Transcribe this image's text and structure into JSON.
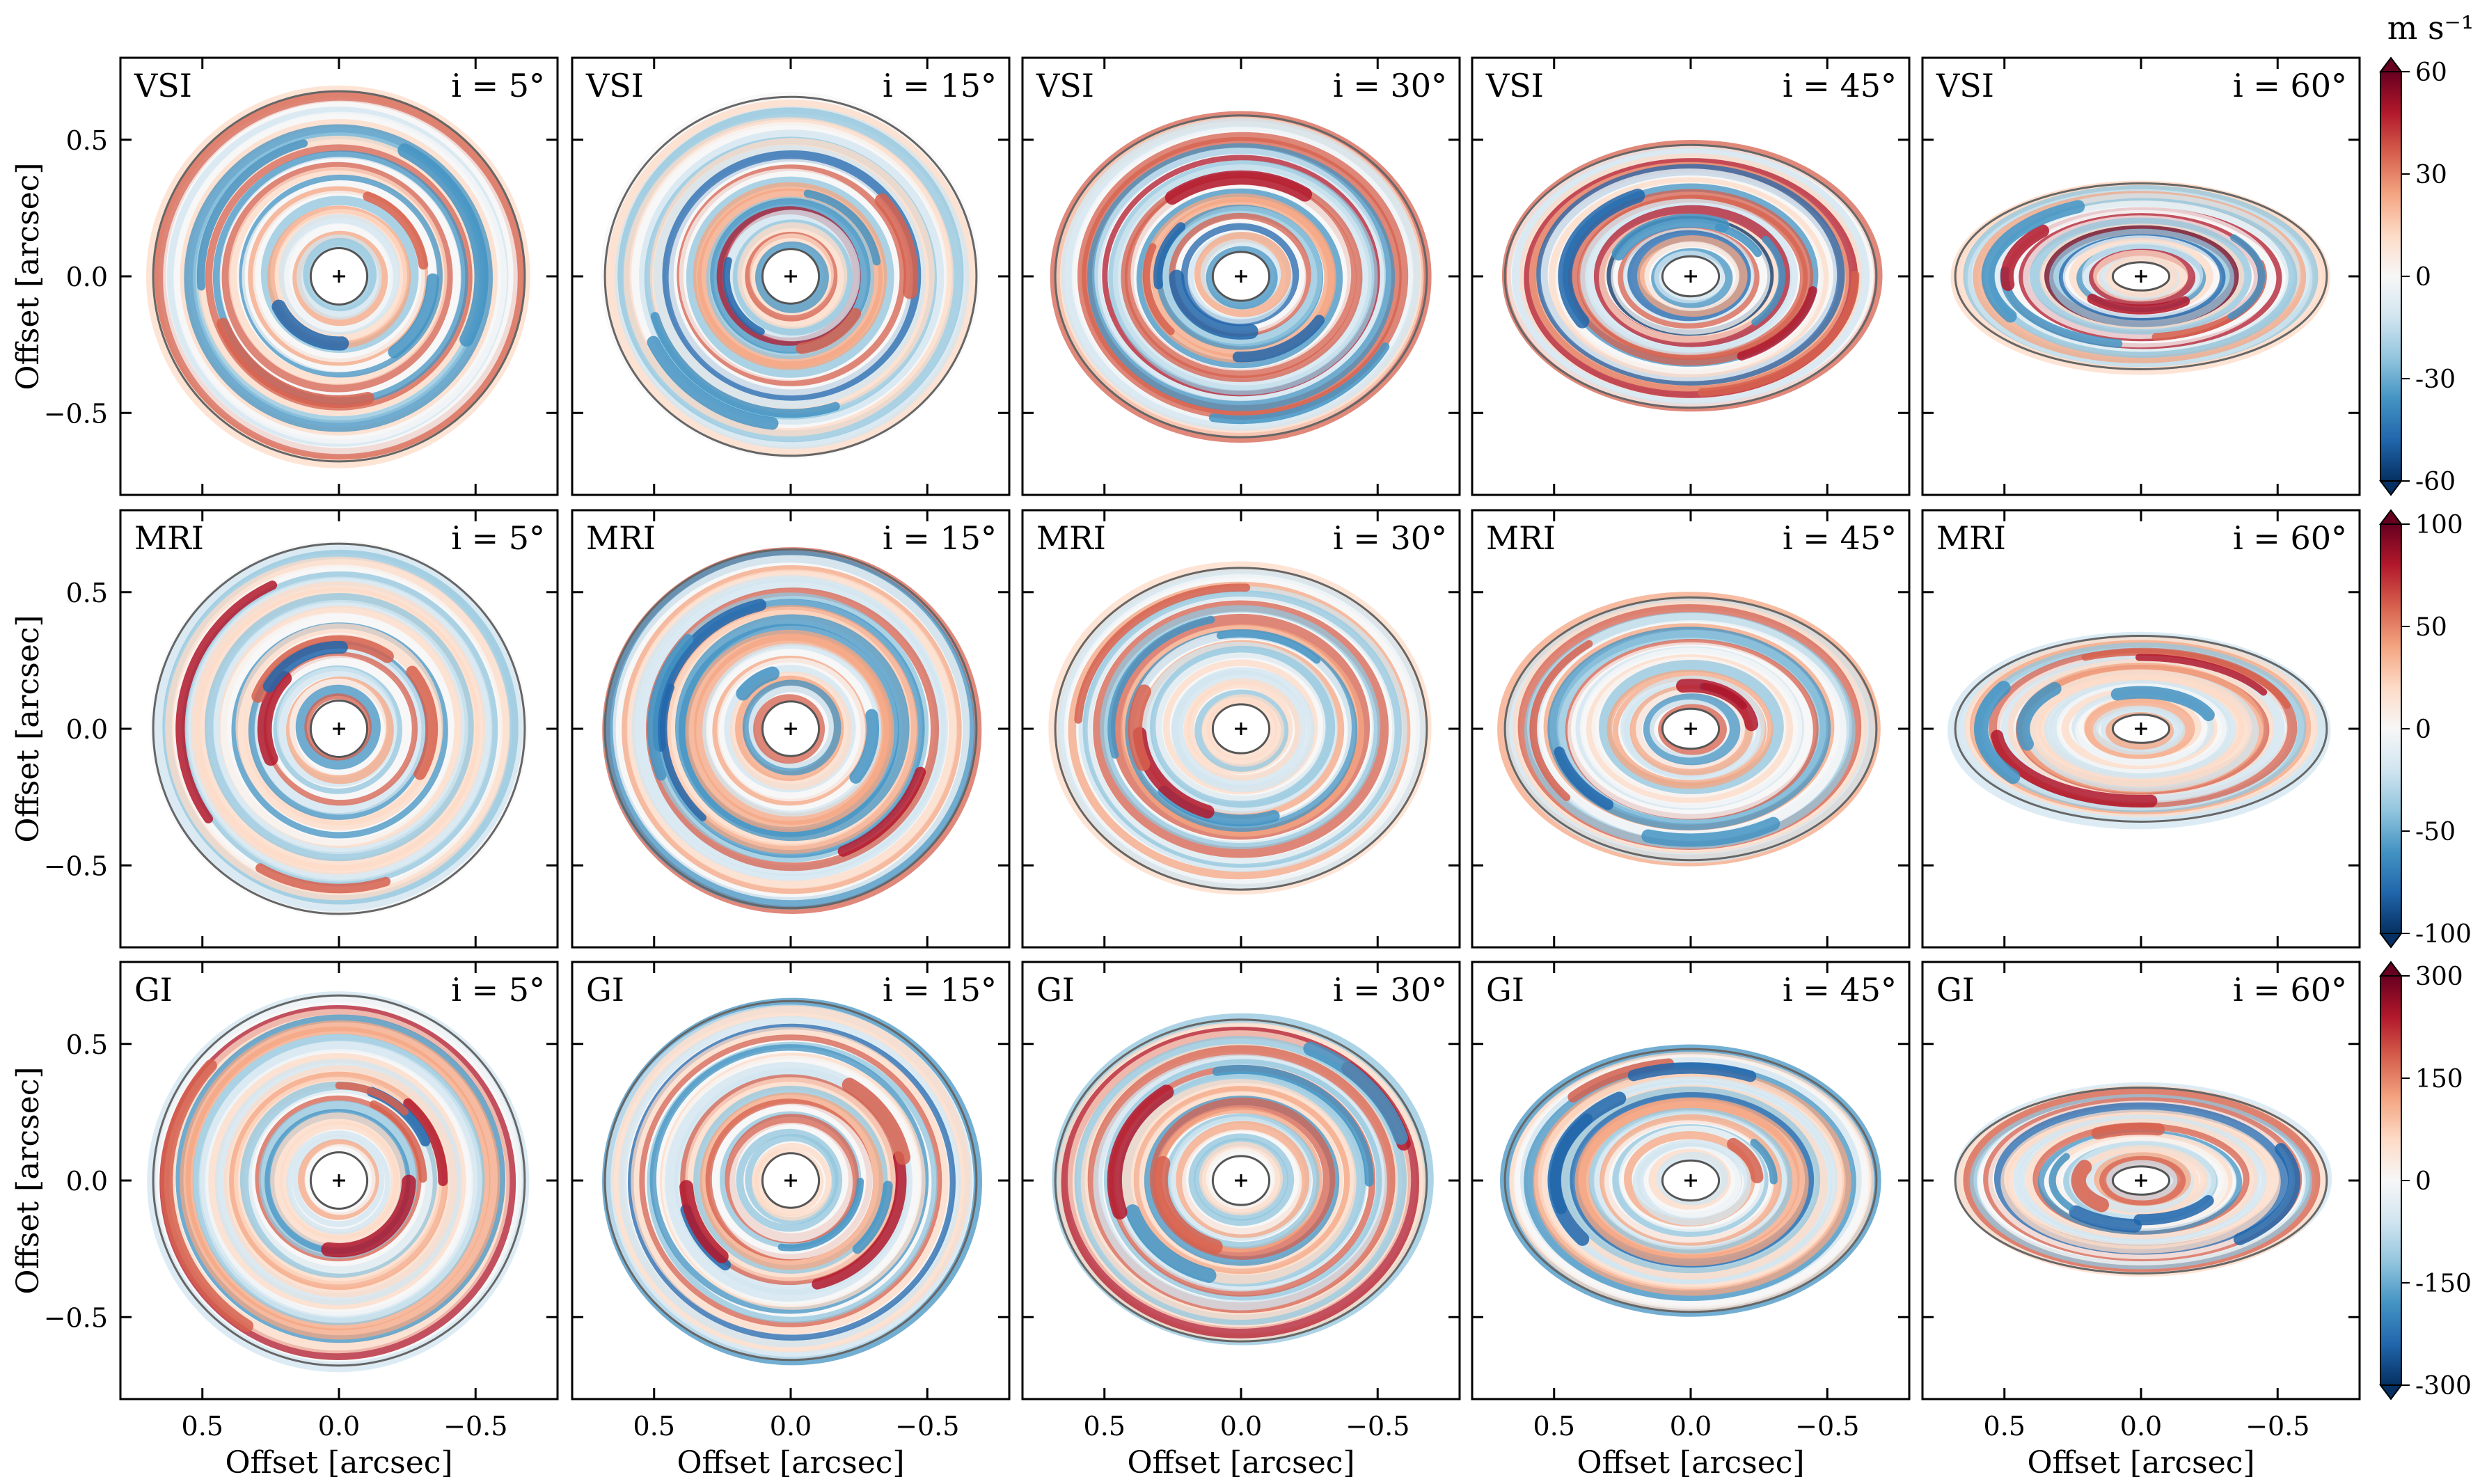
{
  "figure": {
    "unit_label": "m s⁻¹"
  },
  "chart_data": {
    "type": "heatmap",
    "xlabel": "Offset [arcsec]",
    "ylabel": "Offset [arcsec]",
    "xlim": [
      0.8,
      -0.8
    ],
    "ylim": [
      -0.8,
      0.8
    ],
    "x_ticks": [
      0.5,
      0.0,
      -0.5
    ],
    "x_tick_labels": [
      "0.5",
      "0.0",
      "−0.5"
    ],
    "y_ticks": [
      0.5,
      0.0,
      -0.5
    ],
    "y_tick_labels": [
      "0.5",
      "0.0",
      "−0.5"
    ],
    "inclinations": [
      {
        "deg": 5,
        "label": "i = 5°"
      },
      {
        "deg": 15,
        "label": "i = 15°"
      },
      {
        "deg": 30,
        "label": "i = 30°"
      },
      {
        "deg": 45,
        "label": "i = 45°"
      },
      {
        "deg": 60,
        "label": "i = 60°"
      }
    ],
    "rows": [
      {
        "model": "VSI",
        "colorbar": {
          "range": [
            -60,
            60
          ],
          "ticks": [
            "60",
            "30",
            "0",
            "-30",
            "-60"
          ]
        },
        "strength": 0.9
      },
      {
        "model": "MRI",
        "colorbar": {
          "range": [
            -100,
            100
          ],
          "ticks": [
            "100",
            "50",
            "0",
            "-50",
            "-100"
          ]
        },
        "strength": 0.7
      },
      {
        "model": "GI",
        "colorbar": {
          "range": [
            -300,
            300
          ],
          "ticks": [
            "300",
            "150",
            "0",
            "-150",
            "-300"
          ]
        },
        "strength": 0.75
      }
    ],
    "disk": {
      "outer_radius_arcsec": 0.68,
      "inner_radius_arcsec": 0.09
    },
    "colormap": [
      "#053061",
      "#2166ac",
      "#4393c3",
      "#92c5de",
      "#d1e5f0",
      "#f7f7f7",
      "#fddbc7",
      "#f4a582",
      "#d6604d",
      "#b2182b",
      "#67001f"
    ]
  }
}
